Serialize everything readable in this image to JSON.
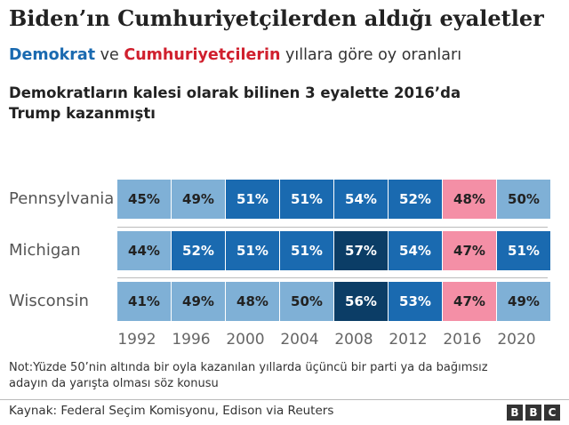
{
  "title": "Biden’ın Cumhuriyetçilerden aldığı eyaletler",
  "subtitle": {
    "dem": "Demokrat",
    "middle": " ve ",
    "rep": "Cumhuriyetçilerin",
    "rest": " yıllara göre oy oranları"
  },
  "heading": "Demokratların kalesi olarak bilinen 3 eyalette 2016’da Trump kazanmıştı",
  "colors": {
    "dem_light": "#7fb0d6",
    "dem_mid": "#1a6ab0",
    "dem_dark": "#0b3d66",
    "rep": "#f48fa6",
    "label_dark": "#222222",
    "label_light": "#ffffff"
  },
  "chart_data": {
    "type": "table",
    "years": [
      "1992",
      "1996",
      "2000",
      "2004",
      "2008",
      "2012",
      "2016",
      "2020"
    ],
    "rows": [
      {
        "state": "Pennsylvania",
        "values": [
          "45%",
          "49%",
          "51%",
          "51%",
          "54%",
          "52%",
          "48%",
          "50%"
        ],
        "colors": [
          "#7fb0d6",
          "#7fb0d6",
          "#1a6ab0",
          "#1a6ab0",
          "#1a6ab0",
          "#1a6ab0",
          "#f48fa6",
          "#7fb0d6"
        ]
      },
      {
        "state": "Michigan",
        "values": [
          "44%",
          "52%",
          "51%",
          "51%",
          "57%",
          "54%",
          "47%",
          "51%"
        ],
        "colors": [
          "#7fb0d6",
          "#1a6ab0",
          "#1a6ab0",
          "#1a6ab0",
          "#0b3d66",
          "#1a6ab0",
          "#f48fa6",
          "#1a6ab0"
        ]
      },
      {
        "state": "Wisconsin",
        "values": [
          "41%",
          "49%",
          "48%",
          "50%",
          "56%",
          "53%",
          "47%",
          "49%"
        ],
        "colors": [
          "#7fb0d6",
          "#7fb0d6",
          "#7fb0d6",
          "#7fb0d6",
          "#0b3d66",
          "#1a6ab0",
          "#f48fa6",
          "#7fb0d6"
        ]
      }
    ]
  },
  "note": "Not:Yüzde 50’nin altında bir oyla kazanılan yıllarda  üçüncü bir parti ya da bağımsız adayın da yarışta olması söz konusu",
  "source": "Kaynak: Federal Seçim Komisyonu, Edison via Reuters",
  "logo": [
    "B",
    "B",
    "C"
  ]
}
